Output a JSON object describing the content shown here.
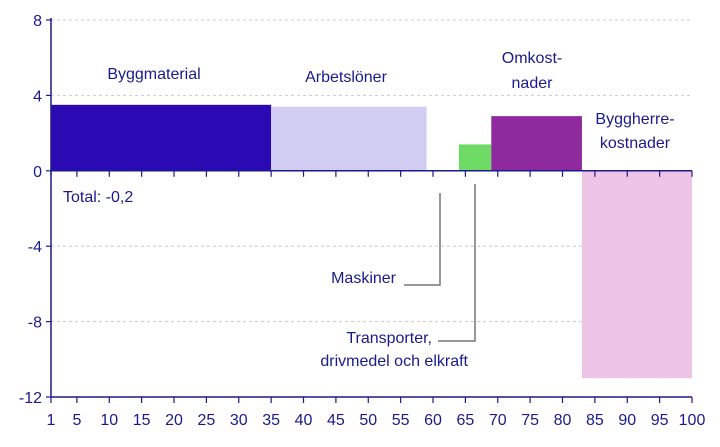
{
  "chart_data": {
    "type": "bar",
    "subtype": "variable-width (mekko)",
    "x_axis": {
      "range": [
        1,
        100
      ],
      "ticks": [
        1,
        5,
        10,
        15,
        20,
        25,
        30,
        35,
        40,
        45,
        50,
        55,
        60,
        65,
        70,
        75,
        80,
        85,
        90,
        95,
        100
      ]
    },
    "y_axis": {
      "range": [
        -12,
        8
      ],
      "ticks": [
        8,
        4,
        0,
        -4,
        -8,
        -12
      ]
    },
    "grid": true,
    "segments": [
      {
        "name": "Byggmaterial",
        "x_start": 1,
        "x_end": 35,
        "value": 3.5,
        "color": "#2B0AB3"
      },
      {
        "name": "Arbetslöner",
        "x_start": 35,
        "x_end": 59,
        "value": 3.4,
        "color": "#D0CCF2"
      },
      {
        "name": "Maskiner",
        "x_start": 59,
        "x_end": 64,
        "value": 0.0,
        "color": "#2B0AB3"
      },
      {
        "name": "Transporter, drivmedel och elkraft",
        "x_start": 64,
        "x_end": 69,
        "value": 1.4,
        "color": "#6EDB67"
      },
      {
        "name": "Omkostnader",
        "x_start": 69,
        "x_end": 83,
        "value": 2.9,
        "color": "#8E2A9E"
      },
      {
        "name": "Byggherrekostnader",
        "x_start": 83,
        "x_end": 100,
        "value": -11.0,
        "color": "#EDC3E6"
      }
    ],
    "labels": {
      "byggmaterial": "Byggmaterial",
      "arbetsloner": "Arbetslöner",
      "omkostnader_1": "Omkost-",
      "omkostnader_2": "nader",
      "byggherre_1": "Byggherre-",
      "byggherre_2": "kostnader",
      "maskiner": "Maskiner",
      "transporter_1": "Transporter,",
      "transporter_2": "drivmedel och elkraft",
      "total": "Total: -0,2"
    }
  }
}
